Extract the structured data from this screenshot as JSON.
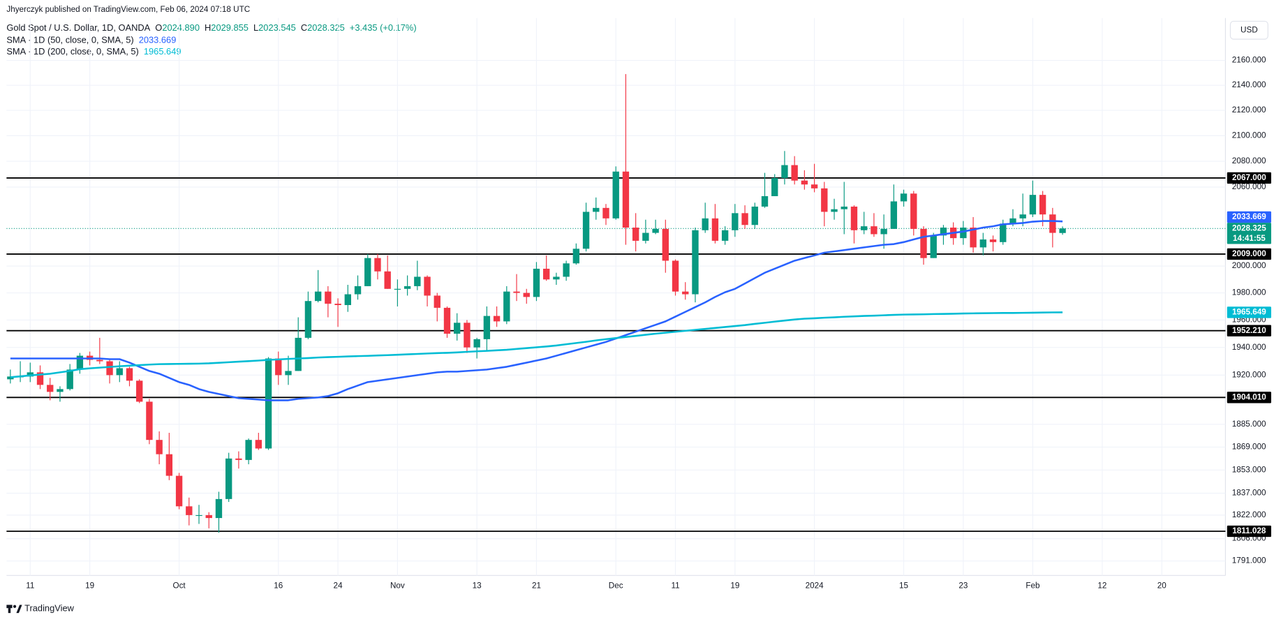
{
  "chart_data": {
    "type": "candlestick",
    "attribution": "Jhyerczyk published on TradingView.com, Feb 06, 2024 07:18 UTC",
    "title": "Gold Spot / U.S. Dollar, 1D, OANDA",
    "ohlc_legend": [
      {
        "key": "O",
        "value": "2024.890"
      },
      {
        "key": "H",
        "value": "2029.855"
      },
      {
        "key": "L",
        "value": "2023.545"
      },
      {
        "key": "C",
        "value": "2028.325"
      }
    ],
    "change": "+3.435 (+0.17%)",
    "currency": "USD",
    "brand": "TradingView",
    "up_color": "#089981",
    "down_color": "#f23645",
    "level_color": "#000000",
    "ylog": true,
    "grid": true,
    "ylim": [
      1781.3,
      2194.6
    ],
    "yticks": [
      {
        "value": 2160,
        "label": "2160.000"
      },
      {
        "value": 2140,
        "label": "2140.000"
      },
      {
        "value": 2120,
        "label": "2120.000"
      },
      {
        "value": 2100,
        "label": "2100.000"
      },
      {
        "value": 2080,
        "label": "2080.000"
      },
      {
        "value": 2060,
        "label": "2060.000"
      },
      {
        "value": 2000,
        "label": "2000.000"
      },
      {
        "value": 1980,
        "label": "1980.000"
      },
      {
        "value": 1960,
        "label": "1960.000"
      },
      {
        "value": 1940,
        "label": "1940.000"
      },
      {
        "value": 1920,
        "label": "1920.000"
      },
      {
        "value": 1885,
        "label": "1885.000"
      },
      {
        "value": 1869,
        "label": "1869.000"
      },
      {
        "value": 1853,
        "label": "1853.000"
      },
      {
        "value": 1837,
        "label": "1837.000"
      },
      {
        "value": 1822,
        "label": "1822.000"
      },
      {
        "value": 1806,
        "label": "1806.000"
      },
      {
        "value": 1791,
        "label": "1791.000"
      }
    ],
    "levels": [
      {
        "value": 2067,
        "label": "2067.000"
      },
      {
        "value": 2009,
        "label": "2009.000"
      },
      {
        "value": 1952.21,
        "label": "1952.210"
      },
      {
        "value": 1904.01,
        "label": "1904.010"
      },
      {
        "value": 1811.028,
        "label": "1811.028"
      }
    ],
    "categories": [
      null,
      null,
      "11",
      null,
      null,
      null,
      null,
      null,
      "19",
      null,
      null,
      null,
      null,
      null,
      null,
      null,
      null,
      "Oct",
      null,
      null,
      null,
      null,
      null,
      null,
      null,
      null,
      null,
      "16",
      null,
      null,
      null,
      null,
      null,
      "24",
      null,
      null,
      null,
      null,
      null,
      "Nov",
      null,
      null,
      null,
      null,
      null,
      null,
      null,
      "13",
      null,
      null,
      null,
      null,
      null,
      "21",
      null,
      null,
      null,
      null,
      null,
      null,
      null,
      "Dec",
      null,
      null,
      null,
      null,
      null,
      "11",
      null,
      null,
      null,
      null,
      null,
      "19",
      null,
      null,
      null,
      null,
      null,
      null,
      null,
      "2024",
      null,
      null,
      null,
      null,
      null,
      null,
      null,
      null,
      "15",
      null,
      null,
      null,
      null,
      null,
      "23",
      null,
      null,
      null,
      null,
      null,
      null,
      "Feb",
      null,
      null,
      null,
      null,
      null,
      null,
      "12",
      null,
      null,
      null,
      null,
      null,
      "20"
    ],
    "open": [
      1917,
      1919,
      1919,
      1922,
      1913,
      1908,
      1910,
      1924,
      1934,
      1931,
      1930,
      1920,
      1925,
      1916,
      1901,
      1874,
      1864,
      1849,
      1828,
      1822,
      1822,
      1820,
      1833,
      1861,
      1860,
      1874,
      1868,
      1932,
      1920,
      1923,
      1947,
      1974,
      1981,
      1972,
      1971,
      1979,
      1985,
      2006,
      1996,
      1983,
      1983,
      1985,
      1992,
      1978,
      1969,
      1950,
      1958,
      1940,
      1946,
      1963,
      1959,
      1981,
      1980,
      1977,
      1998,
      1990,
      1992,
      2002,
      2013,
      2041,
      2044,
      2036,
      2072,
      2029,
      2019,
      2025,
      2028,
      2004,
      1981,
      1979,
      2027,
      2036,
      2019,
      2027,
      2040,
      2031,
      2045,
      2053,
      2067,
      2077,
      2065,
      2062,
      2059,
      2041,
      2043,
      2045,
      2027,
      2030,
      2024,
      2028,
      2049,
      2055,
      2028,
      2006,
      2023,
      2029,
      2021,
      2029,
      2014,
      2020,
      2018,
      2032,
      2036,
      2039,
      2054,
      2039,
      2024.89,
      null,
      null,
      null,
      null,
      null,
      null,
      null,
      null,
      null,
      null
    ],
    "high": [
      1924,
      1930,
      1929,
      1927,
      1918,
      1912,
      1928,
      1936,
      1937,
      1947,
      1932,
      1930,
      1926,
      1917,
      1903,
      1880,
      1879,
      1851,
      1834,
      1829,
      1824,
      1838,
      1865,
      1866,
      1875,
      1879,
      1933,
      1937,
      1934,
      1962,
      1981,
      1997,
      1985,
      1976,
      1986,
      1993,
      2009,
      2009,
      2008,
      1990,
      1993,
      2004,
      1993,
      1980,
      1970,
      1965,
      1960,
      1947,
      1970,
      1970,
      1985,
      1994,
      1983,
      2003,
      2008,
      1995,
      2004,
      2017,
      2048,
      2052,
      2047,
      2076,
      2149,
      2040,
      2035,
      2035,
      2035,
      2005,
      1988,
      2029,
      2048,
      2047,
      2030,
      2047,
      2046,
      2048,
      2071,
      2070,
      2088,
      2084,
      2073,
      2078,
      2064,
      2051,
      2064,
      2046,
      2041,
      2040,
      2039,
      2062,
      2058,
      2057,
      2030,
      2025,
      2031,
      2033,
      2034,
      2037,
      2025,
      2023,
      2035,
      2043,
      2055,
      2065,
      2057,
      2044,
      2029.855,
      null,
      null,
      null,
      null,
      null,
      null,
      null,
      null,
      null,
      null
    ],
    "low": [
      1914,
      1915,
      1915,
      1910,
      1902,
      1901,
      1909,
      1921,
      1927,
      1928,
      1914,
      1915,
      1912,
      1900,
      1871,
      1857,
      1846,
      1826,
      1815,
      1816,
      1813,
      1810,
      1831,
      1854,
      1857,
      1867,
      1867,
      1913,
      1913,
      1923,
      1946,
      1973,
      1962,
      1955,
      1966,
      1975,
      1985,
      1990,
      1983,
      1970,
      1978,
      1982,
      1970,
      1959,
      1947,
      1945,
      1936,
      1932,
      1938,
      1955,
      1957,
      1974,
      1972,
      1974,
      1989,
      1986,
      1989,
      2001,
      2011,
      2035,
      2031,
      2035,
      2016,
      2011,
      2017,
      2024,
      1995,
      1978,
      1975,
      1973,
      2025,
      2017,
      2016,
      2022,
      2028,
      2028,
      2044,
      2053,
      2062,
      2062,
      2058,
      2056,
      2030,
      2035,
      2024,
      2017,
      2024,
      2022,
      2013,
      2028,
      2045,
      2023,
      2001,
      2006,
      2016,
      2016,
      2016,
      2010,
      2008,
      2011,
      2016,
      2030,
      2030,
      2037,
      2030,
      2014,
      2023.545,
      null,
      null,
      null,
      null,
      null,
      null,
      null,
      null,
      null,
      null
    ],
    "close": [
      1919,
      1919,
      1922,
      1913,
      1908,
      1910,
      1924,
      1934,
      1931,
      1930,
      1920,
      1925,
      1916,
      1901,
      1874,
      1864,
      1849,
      1828,
      1822,
      1822,
      1820,
      1833,
      1861,
      1860,
      1874,
      1868,
      1932,
      1920,
      1923,
      1947,
      1974,
      1981,
      1972,
      1971,
      1979,
      1985,
      2006,
      1996,
      1983,
      1983,
      1985,
      1992,
      1978,
      1969,
      1950,
      1958,
      1940,
      1946,
      1963,
      1959,
      1981,
      1980,
      1977,
      1998,
      1990,
      1992,
      2002,
      2013,
      2041,
      2044,
      2036,
      2072,
      2029,
      2019,
      2025,
      2028,
      2004,
      1981,
      1979,
      2027,
      2036,
      2019,
      2027,
      2040,
      2031,
      2045,
      2053,
      2067,
      2077,
      2065,
      2062,
      2059,
      2041,
      2043,
      2045,
      2027,
      2030,
      2024,
      2028,
      2049,
      2055,
      2028,
      2006,
      2023,
      2029,
      2021,
      2029,
      2014,
      2020,
      2018,
      2032,
      2036,
      2039,
      2054,
      2039,
      2025,
      2028.325,
      null,
      null,
      null,
      null,
      null,
      null,
      null,
      null,
      null,
      null
    ],
    "last_price_label": "2028.325",
    "countdown": "14:41:55",
    "series": [
      {
        "name": "SMA · 1D (50, close, 0, SMA, 5)",
        "color": "#2962ff",
        "last_label": "2033.669",
        "values": [
          1932,
          1932,
          1932,
          1932,
          1932,
          1932,
          1932,
          1932,
          1932,
          1932,
          1931.5,
          1931.5,
          1929,
          1926,
          1923,
          1921,
          1918,
          1915,
          1913,
          1910,
          1908,
          1906.5,
          1905,
          1903.5,
          1903,
          1902.5,
          1902,
          1902,
          1902,
          1903,
          1903.5,
          1904,
          1905,
          1907,
          1910,
          1912.5,
          1915,
          1916,
          1917,
          1918,
          1919,
          1920,
          1921,
          1922,
          1922.5,
          1922.5,
          1923,
          1923.5,
          1924,
          1925,
          1926,
          1927.5,
          1929,
          1930.5,
          1932,
          1934,
          1936,
          1938,
          1940,
          1942,
          1944,
          1946.5,
          1949,
          1951.5,
          1954,
          1956.5,
          1959,
          1962.5,
          1966,
          1969.5,
          1973,
          1977,
          1980.5,
          1983,
          1987,
          1991,
          1995,
          1998,
          2001,
          2004,
          2006,
          2008,
          2010,
          2011,
          2012,
          2013,
          2014,
          2015,
          2016,
          2016.5,
          2018,
          2020,
          2022,
          2023,
          2024,
          2025,
          2026,
          2027.5,
          2029,
          2030,
          2031.5,
          2032,
          2032.5,
          2033.5,
          2034,
          2034,
          2033.669,
          null,
          null,
          null,
          null,
          null,
          null,
          null,
          null,
          null,
          null
        ]
      },
      {
        "name": "SMA · 1D (200, close, 0, SMA, 5)",
        "color": "#00bcd4",
        "last_label": "1965.649",
        "values": [
          1918.5,
          1919.1,
          1919.8,
          1920.4,
          1921,
          1922,
          1923,
          1924.3,
          1924.9,
          1925.4,
          1925.9,
          1926.4,
          1926.8,
          1927.2,
          1927.6,
          1927.9,
          1928,
          1928.1,
          1928.2,
          1928.3,
          1928.5,
          1928.9,
          1929.3,
          1929.7,
          1930.1,
          1930.5,
          1931,
          1931.3,
          1931.7,
          1932,
          1932.3,
          1932.7,
          1933,
          1933.2,
          1933.5,
          1933.7,
          1933.9,
          1934.2,
          1934.4,
          1934.7,
          1935,
          1935.3,
          1935.6,
          1935.9,
          1936.1,
          1936.4,
          1936.8,
          1937.2,
          1937.5,
          1937.9,
          1938.3,
          1938.9,
          1939.5,
          1940.1,
          1940.7,
          1941.4,
          1942.3,
          1943.2,
          1944.1,
          1945.1,
          1946,
          1946.8,
          1947.6,
          1948.4,
          1949.2,
          1950,
          1950.7,
          1951.4,
          1952.1,
          1952.8,
          1953.5,
          1954.2,
          1954.9,
          1955.6,
          1956.3,
          1957.2,
          1958,
          1958.8,
          1959.6,
          1960.4,
          1961,
          1961.3,
          1961.7,
          1962,
          1962.4,
          1962.7,
          1963,
          1963.2,
          1963.5,
          1963.8,
          1964,
          1964.1,
          1964.2,
          1964.4,
          1964.5,
          1964.6,
          1964.8,
          1964.9,
          1965,
          1965.1,
          1965.2,
          1965.2,
          1965.3,
          1965.4,
          1965.5,
          1965.6,
          1965.649,
          null,
          null,
          null,
          null,
          null,
          null,
          null,
          null,
          null,
          null
        ]
      }
    ]
  }
}
